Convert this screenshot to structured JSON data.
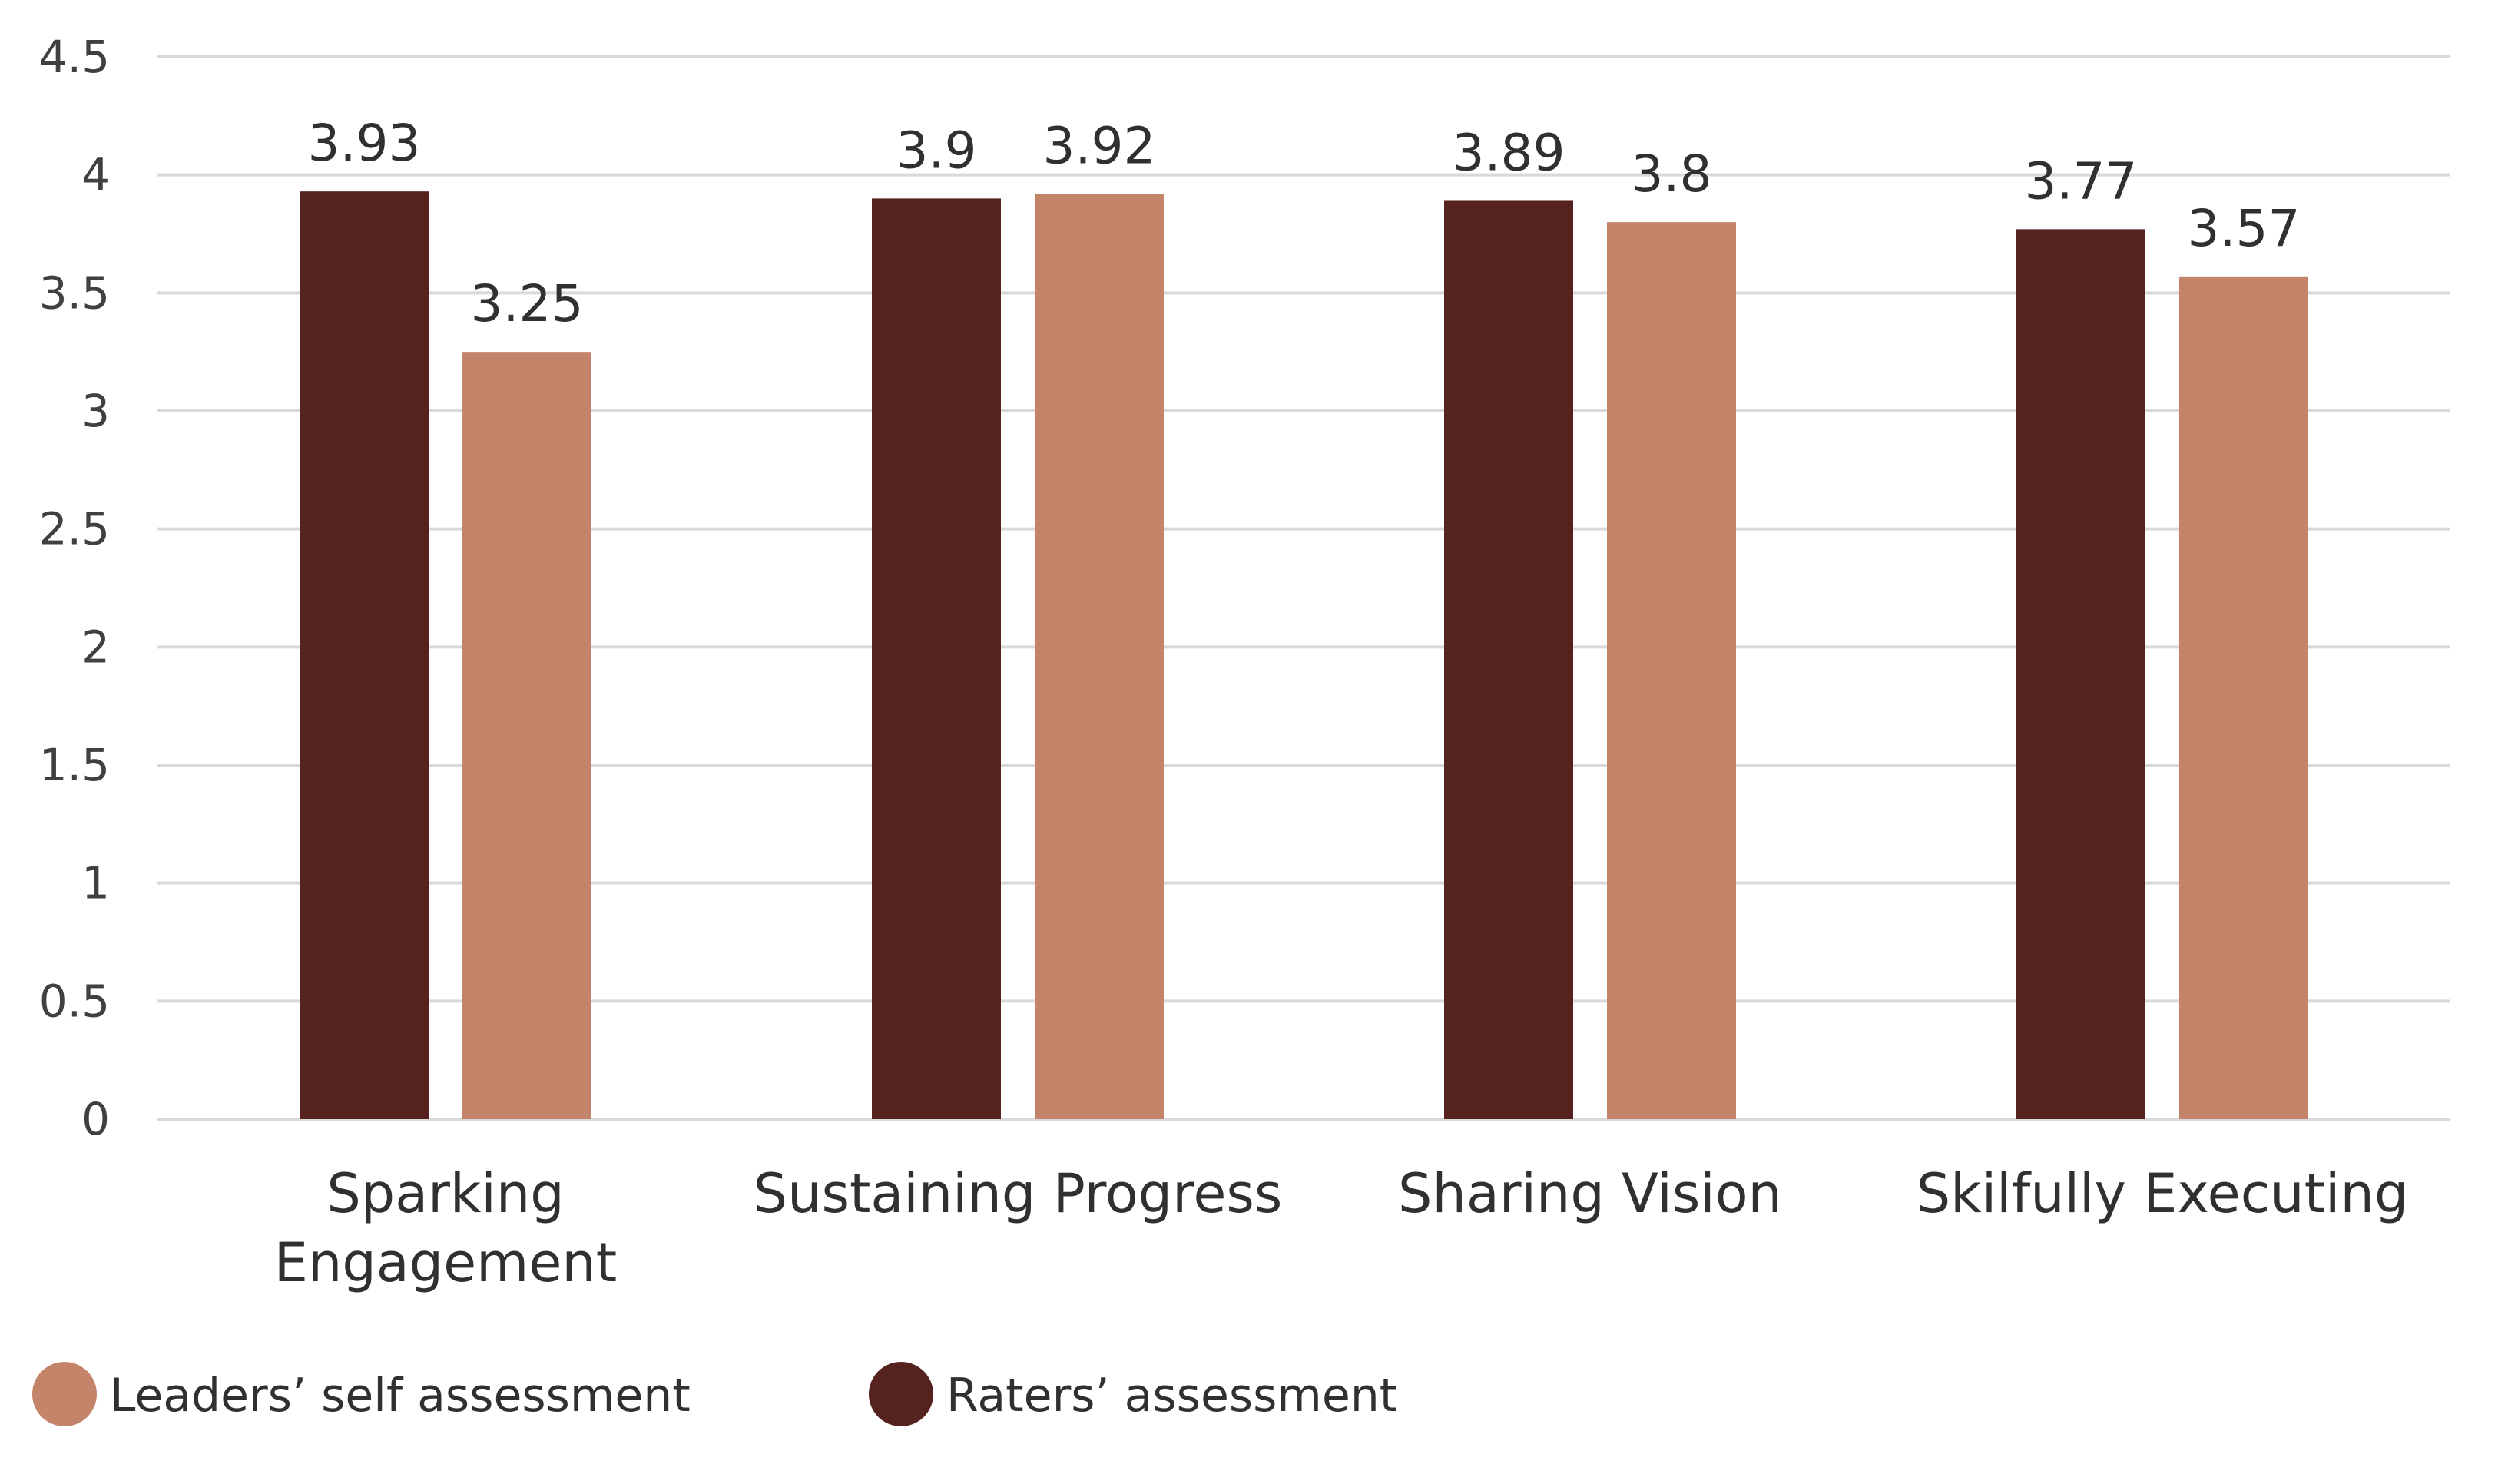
{
  "chart_data": {
    "type": "bar",
    "title": "",
    "xlabel": "",
    "ylabel": "",
    "categories": [
      [
        "Sparking",
        "Engagement"
      ],
      [
        "Sustaining Progress"
      ],
      [
        "Sharing Vision"
      ],
      [
        "Skilfully Executing"
      ]
    ],
    "series": [
      {
        "name": "Raters’ assessment",
        "color": "#56221F",
        "values": [
          3.93,
          3.9,
          3.89,
          3.77
        ],
        "labels": [
          "3.93",
          "3.9",
          "3.89",
          "3.77"
        ]
      },
      {
        "name": "Leaders’ self assessment",
        "color": "#C4846A",
        "values": [
          3.25,
          3.92,
          3.8,
          3.57
        ],
        "labels": [
          "3.25",
          "3.92",
          "3.8",
          "3.57"
        ]
      }
    ],
    "legend_order": [
      1,
      0
    ],
    "legend_position": "bottom-left",
    "ylim": [
      0,
      4.5
    ],
    "yticks": [
      "0",
      "0.5",
      "1",
      "1.5",
      "2",
      "2.5",
      "3",
      "3.5",
      "4",
      "4.5"
    ],
    "grid": true
  }
}
